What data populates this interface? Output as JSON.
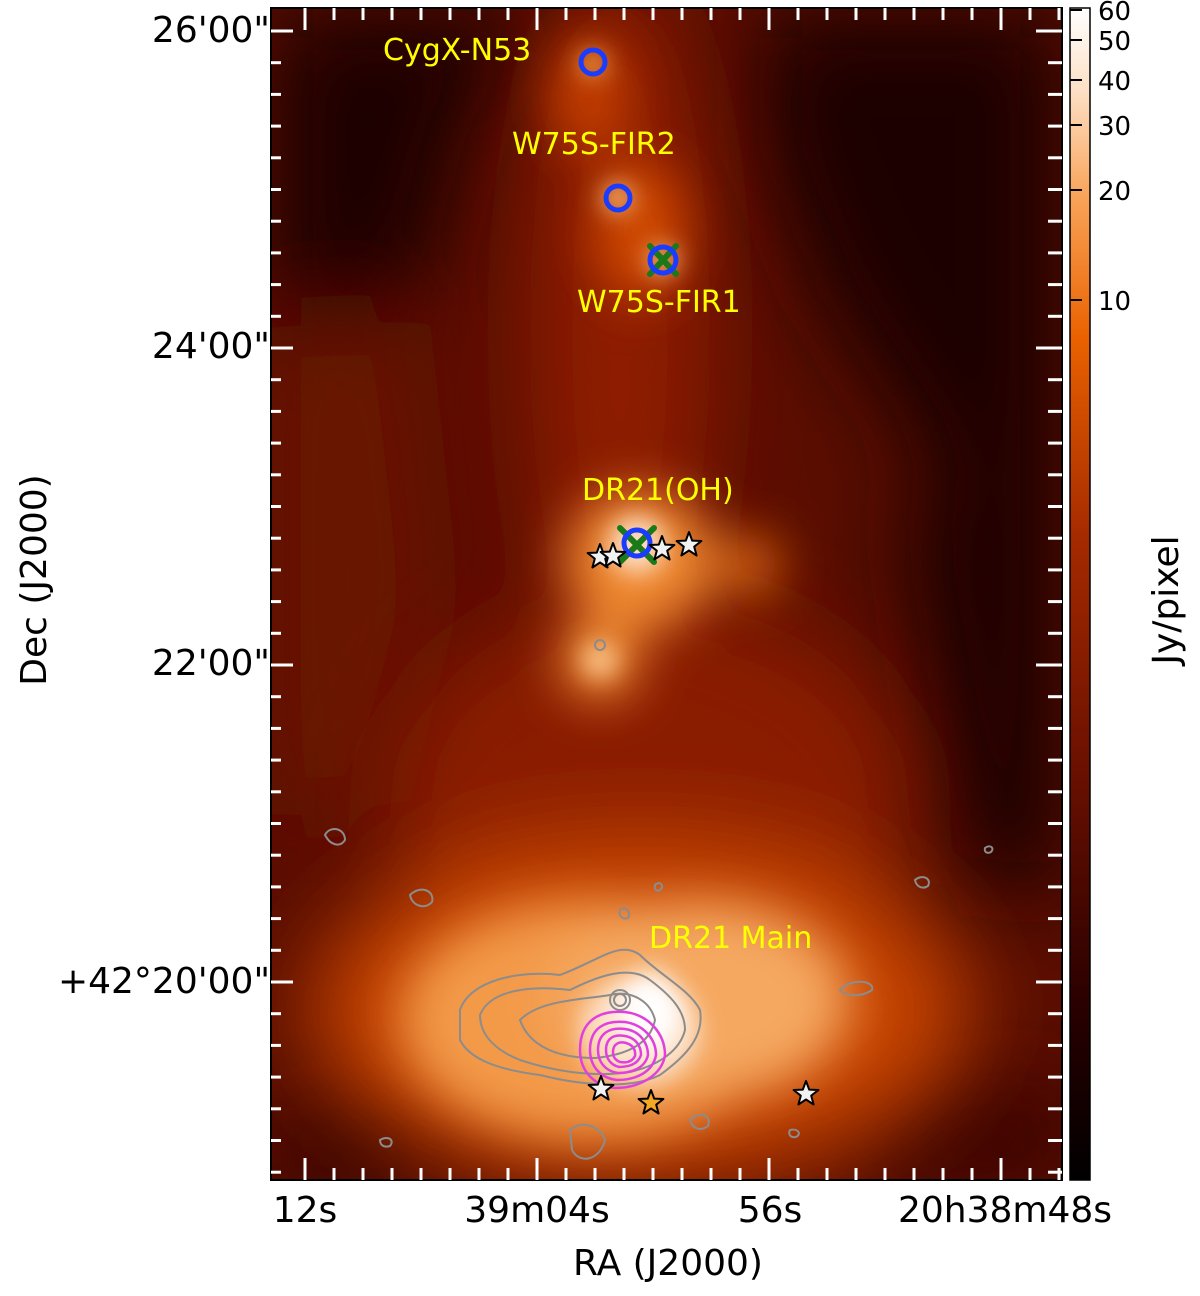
{
  "figure": {
    "xlabel": "RA (J2000)",
    "ylabel": "Dec (J2000)",
    "x_tick_labels": [
      "12s",
      "39m04s",
      "56s",
      "20h38m48s"
    ],
    "y_tick_labels": [
      "26'00\"",
      "24'00\"",
      "22'00\"",
      "+42°20'00\""
    ],
    "colorbar_label": "Jy/pixel",
    "colorbar_ticks": [
      "60",
      "50",
      "40",
      "30",
      "20",
      "10"
    ],
    "colorbar_scale": "log",
    "colormap": [
      "#000000",
      "#2a0000",
      "#5c0a00",
      "#8e1e00",
      "#c23c00",
      "#f06a00",
      "#f9a45a",
      "#fde0c6",
      "#ffffff"
    ]
  },
  "sources": [
    {
      "label": "CygX-N53",
      "color": "#ffff00"
    },
    {
      "label": "W75S-FIR2",
      "color": "#ffff00"
    },
    {
      "label": "W75S-FIR1",
      "color": "#ffff00"
    },
    {
      "label": "DR21(OH)",
      "color": "#ffff00"
    },
    {
      "label": "DR21 Main",
      "color": "#ffff00"
    }
  ],
  "markers": {
    "circle_color": "#1a3cff",
    "cross_color": "#1a7a1a",
    "star_fill_white": "#f2f2f2",
    "star_fill_orange": "#f5a623",
    "contour_gray": "#8c8c8c",
    "contour_magenta": "#e040e0"
  }
}
